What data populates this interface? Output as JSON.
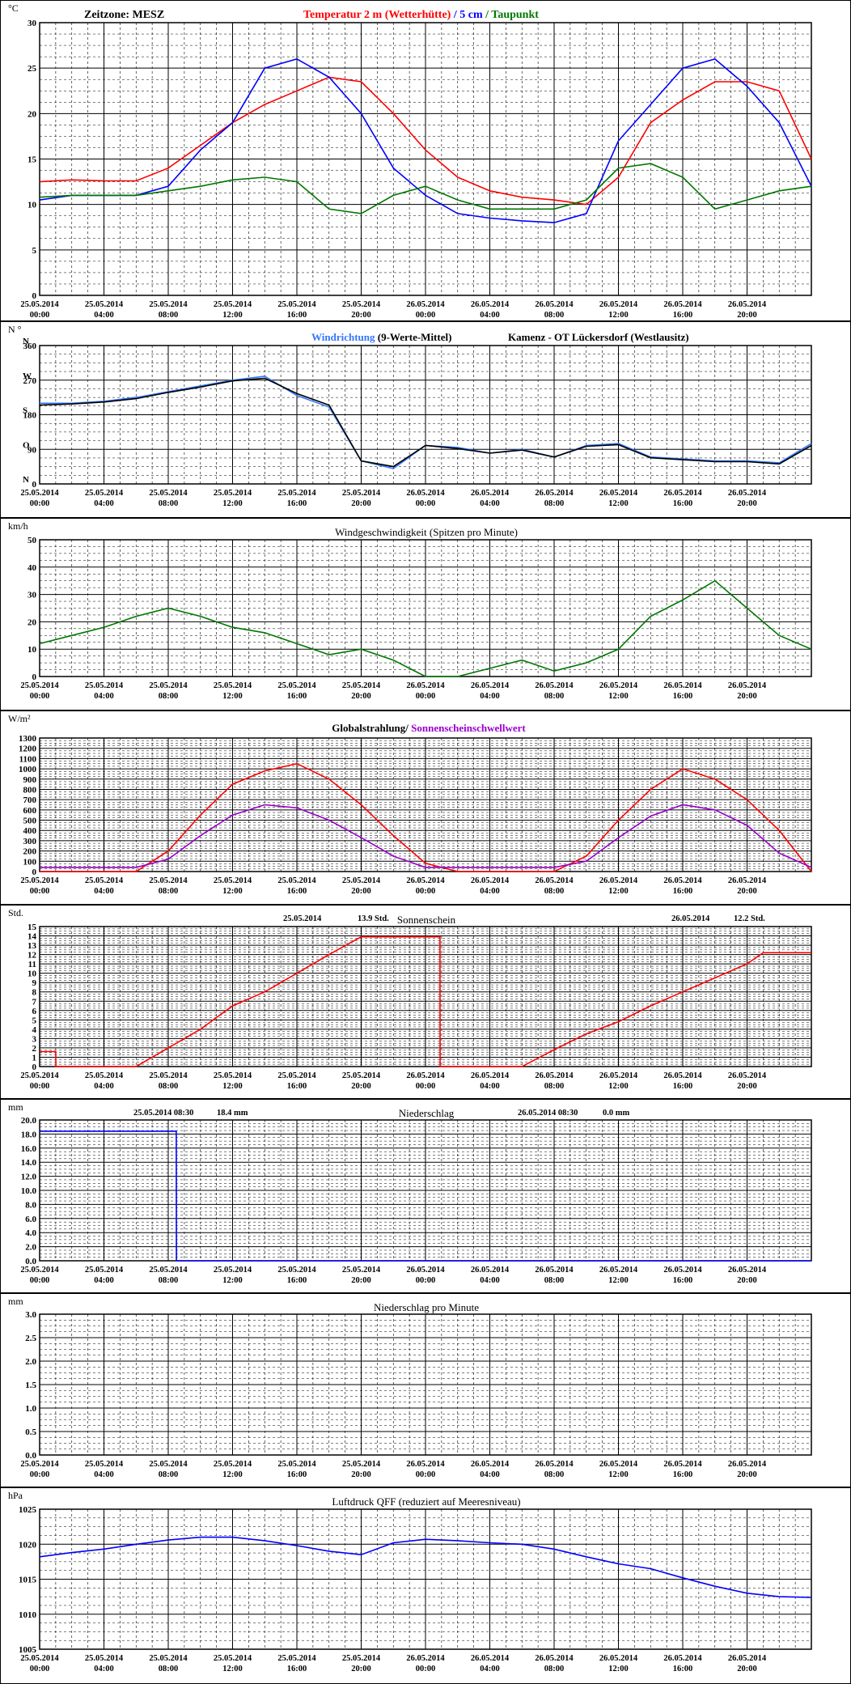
{
  "page": {
    "timezone_label": "Zeitzone: MESZ",
    "x_dates": [
      "25.05.2014",
      "25.05.2014",
      "25.05.2014",
      "25.05.2014",
      "25.05.2014",
      "25.05.2014",
      "26.05.2014",
      "26.05.2014",
      "26.05.2014",
      "26.05.2014",
      "26.05.2014",
      "26.05.2014"
    ],
    "x_times": [
      "00:00",
      "04:00",
      "08:00",
      "12:00",
      "16:00",
      "20:00",
      "00:00",
      "04:00",
      "08:00",
      "12:00",
      "16:00",
      "20:00"
    ],
    "colors": {
      "red": "#ff0000",
      "blue": "#0000ff",
      "green": "#007700",
      "black": "#000000",
      "purple": "#9900cc",
      "lightblue": "#3377ff",
      "grid": "#000000"
    }
  },
  "chart_data": [
    {
      "type": "line",
      "unit": "°C",
      "title_parts": [
        "Temperatur 2 m (Wetterhütte)",
        " / ",
        "5 cm",
        " / ",
        "Taupunkt"
      ],
      "ylim": [
        0,
        30
      ],
      "yticks": [
        0,
        5,
        10,
        15,
        20,
        25,
        30
      ],
      "x": [
        0,
        2,
        4,
        6,
        8,
        10,
        12,
        14,
        16,
        18,
        20,
        22,
        24,
        26,
        28,
        30,
        32,
        34,
        36,
        38,
        40,
        42,
        44,
        46,
        48
      ],
      "series": [
        {
          "name": "Temperatur 2 m (Wetterhütte)",
          "color": "red",
          "values": [
            12.5,
            12.7,
            12.6,
            12.6,
            14,
            16.5,
            19,
            21,
            22.5,
            24,
            23.5,
            20,
            16,
            13,
            11.5,
            10.8,
            10.5,
            10,
            13,
            19,
            21.5,
            23.5,
            23.5,
            22.5,
            15
          ]
        },
        {
          "name": "5 cm",
          "color": "blue",
          "values": [
            10.5,
            11,
            11,
            11,
            12,
            16,
            19,
            25,
            26,
            24,
            20,
            14,
            11,
            9,
            8.5,
            8.2,
            8,
            9,
            17,
            21,
            25,
            26,
            23,
            19,
            12
          ]
        },
        {
          "name": "Taupunkt",
          "color": "green",
          "values": [
            10.8,
            11,
            11,
            11,
            11.5,
            12,
            12.7,
            13,
            12.5,
            9.5,
            9,
            11,
            12,
            10.5,
            9.5,
            9.5,
            9.5,
            10.5,
            14,
            14.5,
            13,
            9.5,
            10.5,
            11.5,
            12
          ]
        }
      ]
    },
    {
      "type": "line",
      "unit": "N °",
      "title_parts": [
        "Windrichtung",
        " (9-Werte-Mittel)"
      ],
      "subtitle": "Kamenz - OT Lückersdorf (Westlausitz)",
      "ylim": [
        0,
        360
      ],
      "yticks": [
        0,
        90,
        180,
        270,
        360
      ],
      "ytick_labels": [
        "0",
        "90",
        "180",
        "270",
        "360"
      ],
      "compass_labels": [
        "N",
        "O",
        "S",
        "W",
        "N"
      ],
      "x": [
        0,
        2,
        4,
        6,
        8,
        10,
        12,
        14,
        16,
        18,
        20,
        22,
        24,
        26,
        28,
        30,
        32,
        34,
        36,
        38,
        40,
        42,
        44,
        46,
        48
      ],
      "series": [
        {
          "name": "Windrichtung",
          "color": "lightblue",
          "values": [
            210,
            210,
            215,
            225,
            240,
            255,
            270,
            280,
            230,
            200,
            60,
            40,
            100,
            95,
            80,
            90,
            70,
            100,
            105,
            70,
            65,
            60,
            60,
            55,
            105
          ]
        },
        {
          "name": "9-Werte-Mittel",
          "color": "black",
          "values": [
            205,
            208,
            213,
            222,
            238,
            252,
            268,
            275,
            235,
            205,
            60,
            45,
            100,
            92,
            80,
            88,
            70,
            98,
            102,
            68,
            63,
            58,
            58,
            52,
            100
          ]
        }
      ]
    },
    {
      "type": "line",
      "unit": "km/h",
      "title": "Windgeschwindigkeit (Spitzen pro Minute)",
      "ylim": [
        0,
        50
      ],
      "yticks": [
        0,
        10,
        20,
        30,
        40,
        50
      ],
      "x": [
        0,
        2,
        4,
        6,
        8,
        10,
        12,
        14,
        16,
        18,
        20,
        22,
        24,
        26,
        28,
        30,
        32,
        34,
        36,
        38,
        40,
        42,
        44,
        46,
        48
      ],
      "series": [
        {
          "name": "Windgeschwindigkeit",
          "color": "green",
          "values": [
            12,
            15,
            18,
            22,
            25,
            22,
            18,
            16,
            12,
            8,
            10,
            6,
            0,
            0,
            3,
            6,
            2,
            5,
            10,
            22,
            28,
            35,
            25,
            15,
            10
          ]
        }
      ]
    },
    {
      "type": "line",
      "unit": "W/m²",
      "title_parts": [
        "Globalstrahlung/",
        " Sonnenscheinschwellwert"
      ],
      "ylim": [
        0,
        1300
      ],
      "yticks": [
        0,
        100,
        200,
        300,
        400,
        500,
        600,
        700,
        800,
        900,
        1000,
        1100,
        1200,
        1300
      ],
      "x": [
        0,
        2,
        4,
        6,
        8,
        10,
        12,
        14,
        16,
        18,
        20,
        22,
        24,
        26,
        28,
        30,
        32,
        34,
        36,
        38,
        40,
        42,
        44,
        46,
        48
      ],
      "series": [
        {
          "name": "Globalstrahlung",
          "color": "red",
          "values": [
            0,
            0,
            0,
            0,
            200,
            550,
            850,
            980,
            1050,
            900,
            650,
            350,
            80,
            0,
            0,
            0,
            0,
            150,
            500,
            800,
            1000,
            900,
            700,
            400,
            0
          ]
        },
        {
          "name": "Sonnenscheinschwellwert",
          "color": "purple",
          "values": [
            40,
            40,
            40,
            40,
            120,
            350,
            550,
            650,
            620,
            500,
            330,
            150,
            40,
            40,
            40,
            40,
            40,
            100,
            330,
            540,
            650,
            600,
            450,
            180,
            40
          ]
        }
      ]
    },
    {
      "type": "line",
      "unit": "Std.",
      "title": "Sonnenschein",
      "annotations": [
        {
          "date": "25.05.2014",
          "value": "13.9",
          "unit": "Std."
        },
        {
          "date": "26.05.2014",
          "value": "12.2",
          "unit": "Std."
        }
      ],
      "ylim": [
        0,
        15
      ],
      "yticks": [
        0,
        1,
        2,
        3,
        4,
        5,
        6,
        7,
        8,
        9,
        10,
        11,
        12,
        13,
        14,
        15
      ],
      "x": [
        0,
        1,
        1.01,
        6,
        8,
        10,
        12,
        14,
        16,
        18,
        20,
        24.9,
        24.91,
        30,
        32,
        34,
        36,
        38,
        40,
        42,
        44,
        45,
        48
      ],
      "series": [
        {
          "name": "Sonnenschein",
          "color": "red",
          "values": [
            1.6,
            1.6,
            0,
            0,
            2,
            4,
            6.5,
            8,
            10,
            12,
            13.9,
            13.9,
            0,
            0,
            1.8,
            3.5,
            4.8,
            6.5,
            8,
            9.5,
            11,
            12.2,
            12.2
          ]
        }
      ]
    },
    {
      "type": "line",
      "unit": "mm",
      "title": "Niederschlag",
      "annotations": [
        {
          "date": "25.05.2014 08:30",
          "value": "18.4",
          "unit": "mm"
        },
        {
          "date": "26.05.2014 08:30",
          "value": "0.0",
          "unit": "mm"
        }
      ],
      "ylim": [
        0,
        20
      ],
      "yticks": [
        0,
        2,
        4,
        6,
        8,
        10,
        12,
        14,
        16,
        18,
        20
      ],
      "ytick_labels": [
        "0.0",
        "2.0",
        "4.0",
        "6.0",
        "8.0",
        "10.0",
        "12.0",
        "14.0",
        "16.0",
        "18.0",
        "20.0"
      ],
      "x": [
        0,
        8.5,
        8.51,
        48
      ],
      "series": [
        {
          "name": "Niederschlag",
          "color": "blue",
          "values": [
            18.4,
            18.4,
            0,
            0
          ]
        }
      ]
    },
    {
      "type": "line",
      "unit": "mm",
      "title": "Niederschlag pro Minute",
      "ylim": [
        0,
        3
      ],
      "yticks": [
        0,
        0.5,
        1,
        1.5,
        2,
        2.5,
        3
      ],
      "ytick_labels": [
        "0.0",
        "0.5",
        "1.0",
        "1.5",
        "2.0",
        "2.5",
        "3.0"
      ],
      "x": [],
      "series": []
    },
    {
      "type": "line",
      "unit": "hPa",
      "title": "Luftdruck QFF (reduziert auf Meeresniveau)",
      "ylim": [
        1005,
        1025
      ],
      "yticks": [
        1005,
        1010,
        1015,
        1020,
        1025
      ],
      "x": [
        0,
        2,
        4,
        6,
        8,
        10,
        12,
        14,
        16,
        18,
        20,
        22,
        24,
        26,
        28,
        30,
        32,
        34,
        36,
        38,
        40,
        42,
        44,
        46,
        48
      ],
      "series": [
        {
          "name": "Luftdruck",
          "color": "blue",
          "values": [
            1018.2,
            1018.8,
            1019.3,
            1020,
            1020.6,
            1021,
            1021,
            1020.5,
            1019.8,
            1019,
            1018.5,
            1020.2,
            1020.7,
            1020.5,
            1020.2,
            1020,
            1019.3,
            1018.2,
            1017.2,
            1016.5,
            1015.2,
            1014,
            1013,
            1012.5,
            1012.4
          ]
        }
      ]
    }
  ]
}
